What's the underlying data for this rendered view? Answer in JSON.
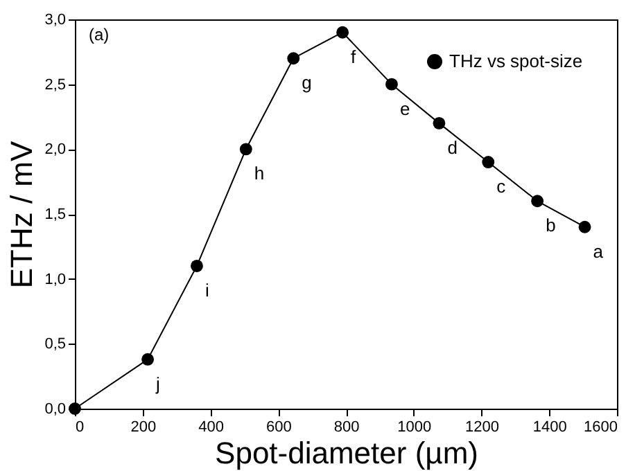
{
  "chart_data": {
    "type": "line",
    "xlabel": "Spot-diameter (µm)",
    "ylabel": "ETHz / mV",
    "x": [
      0,
      215,
      360,
      505,
      645,
      790,
      935,
      1075,
      1220,
      1365,
      1505
    ],
    "series": [
      {
        "name": "THz vs spot-size",
        "color": "#000000",
        "values": [
          0,
          0.38,
          1.1,
          2.0,
          2.7,
          2.9,
          2.5,
          2.2,
          1.9,
          1.6,
          1.4
        ]
      }
    ],
    "xlim": [
      0,
      1600
    ],
    "xticks": [
      0,
      200,
      400,
      600,
      800,
      1000,
      1200,
      1400,
      1600
    ],
    "ylim": [
      0,
      3.0
    ],
    "yticks": [
      {
        "value": 0,
        "label": "0,0"
      },
      {
        "value": 0.5,
        "label": "0,5"
      },
      {
        "value": 1.0,
        "label": "1,0"
      },
      {
        "value": 1.5,
        "label": "1,5"
      },
      {
        "value": 2.0,
        "label": "2,0"
      },
      {
        "value": 2.5,
        "label": "2,5"
      },
      {
        "value": 3.0,
        "label": "3,0"
      }
    ],
    "marker": "circle",
    "line_style": "solid",
    "legend": "top right",
    "grid": false,
    "annotations": [
      "(a)",
      {
        "text": "j",
        "x": 215,
        "y": 0.38
      },
      {
        "text": "i",
        "x": 360,
        "y": 1.1
      },
      {
        "text": "h",
        "x": 505,
        "y": 2.0
      },
      {
        "text": "g",
        "x": 645,
        "y": 2.7
      },
      {
        "text": "f",
        "x": 790,
        "y": 2.9
      },
      {
        "text": "e",
        "x": 935,
        "y": 2.5
      },
      {
        "text": "d",
        "x": 1075,
        "y": 2.2
      },
      {
        "text": "c",
        "x": 1220,
        "y": 1.9
      },
      {
        "text": "b",
        "x": 1365,
        "y": 1.6
      },
      {
        "text": "a",
        "x": 1505,
        "y": 1.4
      }
    ]
  }
}
